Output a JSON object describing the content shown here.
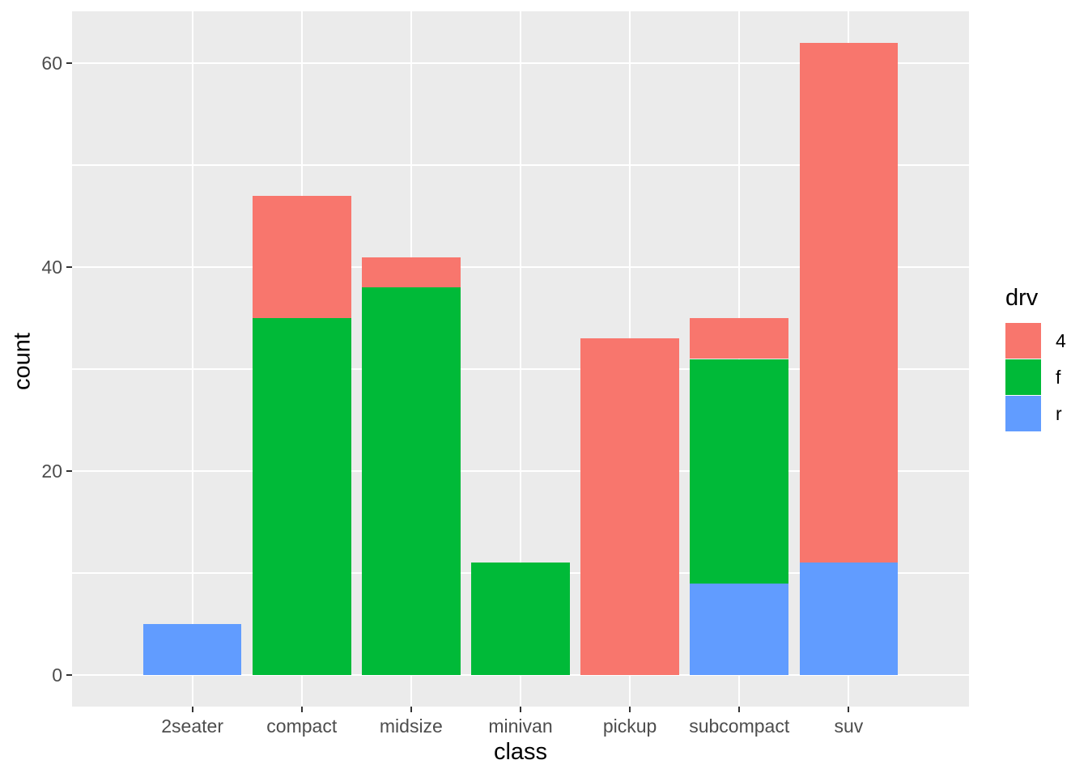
{
  "chart_data": {
    "type": "bar",
    "stacked": true,
    "title": "",
    "xlabel": "class",
    "ylabel": "count",
    "categories": [
      "2seater",
      "compact",
      "midsize",
      "minivan",
      "pickup",
      "subcompact",
      "suv"
    ],
    "series": [
      {
        "name": "4",
        "color": "#F8766D",
        "values": [
          0,
          12,
          3,
          0,
          33,
          4,
          51
        ]
      },
      {
        "name": "f",
        "color": "#00BA38",
        "values": [
          0,
          35,
          38,
          11,
          0,
          22,
          0
        ]
      },
      {
        "name": "r",
        "color": "#619CFF",
        "values": [
          5,
          0,
          0,
          0,
          0,
          9,
          11
        ]
      }
    ],
    "totals": [
      5,
      47,
      41,
      11,
      33,
      35,
      62
    ],
    "stack_order_bottom_to_top": [
      "r",
      "f",
      "4"
    ],
    "ylim": [
      -3.1,
      65.1
    ],
    "y_major_ticks": [
      0,
      20,
      40,
      60
    ],
    "y_minor_ticks": [
      10,
      30,
      50
    ],
    "grid": "on",
    "legend": {
      "title": "drv",
      "position": "right",
      "entries": [
        {
          "label": "4",
          "color": "#F8766D"
        },
        {
          "label": "f",
          "color": "#00BA38"
        },
        {
          "label": "r",
          "color": "#619CFF"
        }
      ]
    },
    "colors": {
      "panel_background": "#EBEBEB",
      "gridline": "#FFFFFF",
      "tick_label": "#4D4D4D",
      "axis_title": "#000000",
      "tick_mark": "#333333"
    }
  }
}
